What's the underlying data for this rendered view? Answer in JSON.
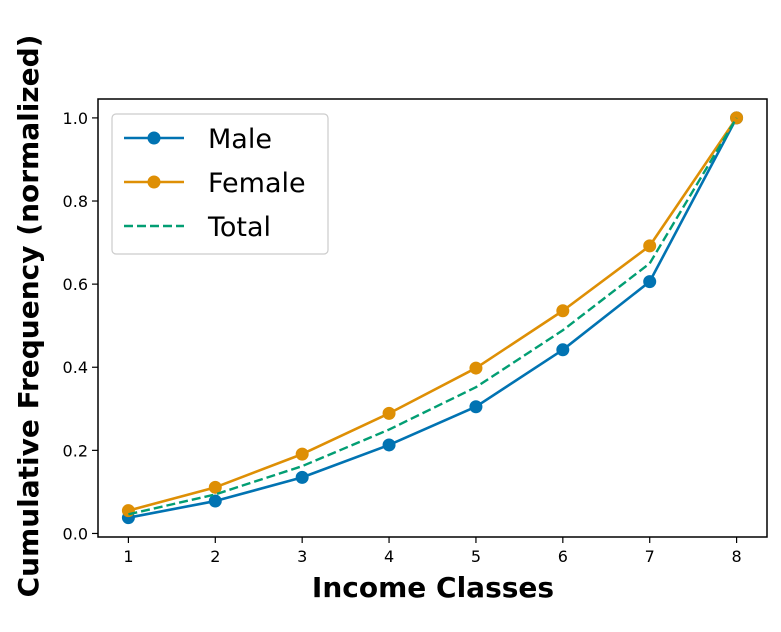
{
  "chart_data": {
    "type": "line",
    "xlabel": "Income Classes",
    "ylabel": "Cumulative Frequency (normalized)",
    "x": [
      1,
      2,
      3,
      4,
      5,
      6,
      7,
      8
    ],
    "xlim": [
      0.65,
      8.35
    ],
    "ylim": [
      -0.0085,
      1.0455
    ],
    "x_ticks": [
      "1",
      "2",
      "3",
      "4",
      "5",
      "6",
      "7",
      "8"
    ],
    "y_ticks": [
      "0.0",
      "0.2",
      "0.4",
      "0.6",
      "0.8",
      "1.0"
    ],
    "y_tick_values": [
      0.0,
      0.2,
      0.4,
      0.6,
      0.8,
      1.0
    ],
    "grid": false,
    "legend_position": "top-left",
    "series": [
      {
        "name": "Male",
        "values": [
          0.038,
          0.078,
          0.135,
          0.213,
          0.305,
          0.442,
          0.606,
          1.0
        ],
        "color": "#0173b2",
        "style": "solid",
        "marker": "circle"
      },
      {
        "name": "Female",
        "values": [
          0.055,
          0.111,
          0.191,
          0.289,
          0.398,
          0.536,
          0.692,
          1.0
        ],
        "color": "#de8f05",
        "style": "solid",
        "marker": "circle"
      },
      {
        "name": "Total",
        "values": [
          0.046,
          0.094,
          0.162,
          0.25,
          0.352,
          0.489,
          0.65,
          1.0
        ],
        "color": "#029e73",
        "style": "dashed",
        "marker": "none"
      }
    ]
  }
}
